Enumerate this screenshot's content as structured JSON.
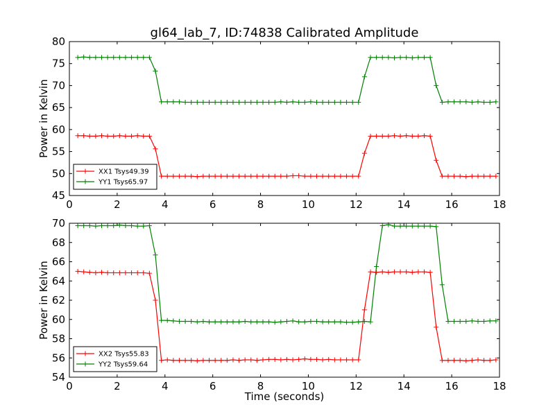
{
  "figure": {
    "title": "gl64_lab_7, ID:74838 Calibrated Amplitude",
    "xlabel": "Time (seconds)"
  },
  "chart_data": [
    {
      "type": "line",
      "title": "gl64_lab_7, ID:74838 Calibrated Amplitude",
      "xlabel": "",
      "ylabel": "Power in Kelvin",
      "xlim": [
        0,
        18
      ],
      "ylim": [
        45,
        80
      ],
      "xticks": [
        0,
        2,
        4,
        6,
        8,
        10,
        12,
        14,
        16,
        18
      ],
      "yticks": [
        45,
        50,
        55,
        60,
        65,
        70,
        75,
        80
      ],
      "grid": false,
      "legend": "lower-left",
      "x": [
        0.35,
        0.6,
        0.85,
        1.1,
        1.35,
        1.6,
        1.85,
        2.1,
        2.35,
        2.6,
        2.85,
        3.1,
        3.35,
        3.6,
        3.85,
        4.1,
        4.35,
        4.6,
        4.85,
        5.1,
        5.35,
        5.6,
        5.85,
        6.1,
        6.35,
        6.6,
        6.85,
        7.1,
        7.35,
        7.6,
        7.85,
        8.1,
        8.35,
        8.6,
        8.85,
        9.1,
        9.35,
        9.6,
        9.85,
        10.1,
        10.35,
        10.6,
        10.85,
        11.1,
        11.35,
        11.6,
        11.85,
        12.1,
        12.35,
        12.6,
        12.85,
        13.1,
        13.35,
        13.6,
        13.85,
        14.1,
        14.35,
        14.6,
        14.85,
        15.1,
        15.35,
        15.6,
        15.85,
        16.1,
        16.35,
        16.6,
        16.85,
        17.1,
        17.35,
        17.6,
        17.85
      ],
      "series": [
        {
          "name": "XX1 Tsys49.39",
          "color": "#ff0000",
          "values": [
            58.6,
            58.6,
            58.5,
            58.5,
            58.6,
            58.5,
            58.5,
            58.6,
            58.5,
            58.5,
            58.6,
            58.5,
            58.5,
            55.6,
            49.4,
            49.4,
            49.4,
            49.4,
            49.4,
            49.4,
            49.3,
            49.4,
            49.4,
            49.4,
            49.4,
            49.4,
            49.4,
            49.4,
            49.4,
            49.4,
            49.4,
            49.4,
            49.4,
            49.4,
            49.4,
            49.4,
            49.5,
            49.5,
            49.4,
            49.4,
            49.4,
            49.4,
            49.4,
            49.4,
            49.4,
            49.4,
            49.4,
            49.4,
            54.6,
            58.5,
            58.5,
            58.5,
            58.5,
            58.6,
            58.5,
            58.6,
            58.5,
            58.5,
            58.6,
            58.5,
            53.0,
            49.4,
            49.4,
            49.4,
            49.4,
            49.3,
            49.4,
            49.4,
            49.4,
            49.4,
            49.4
          ]
        },
        {
          "name": "YY1 Tsys65.97",
          "color": "#008000",
          "values": [
            76.4,
            76.5,
            76.4,
            76.4,
            76.4,
            76.4,
            76.4,
            76.4,
            76.4,
            76.4,
            76.4,
            76.4,
            76.4,
            73.3,
            66.3,
            66.3,
            66.3,
            66.3,
            66.2,
            66.2,
            66.2,
            66.2,
            66.2,
            66.2,
            66.2,
            66.2,
            66.2,
            66.2,
            66.2,
            66.2,
            66.2,
            66.2,
            66.2,
            66.2,
            66.3,
            66.2,
            66.3,
            66.2,
            66.2,
            66.3,
            66.2,
            66.2,
            66.2,
            66.2,
            66.2,
            66.2,
            66.2,
            66.2,
            72.0,
            76.4,
            76.4,
            76.4,
            76.4,
            76.3,
            76.4,
            76.4,
            76.3,
            76.4,
            76.4,
            76.4,
            70.0,
            66.2,
            66.3,
            66.3,
            66.3,
            66.3,
            66.2,
            66.3,
            66.2,
            66.2,
            66.3
          ]
        }
      ]
    },
    {
      "type": "line",
      "title": "",
      "xlabel": "Time (seconds)",
      "ylabel": "Power in Kelvin",
      "xlim": [
        0,
        18
      ],
      "ylim": [
        54,
        70
      ],
      "xticks": [
        0,
        2,
        4,
        6,
        8,
        10,
        12,
        14,
        16,
        18
      ],
      "yticks": [
        54,
        56,
        58,
        60,
        62,
        64,
        66,
        68,
        70
      ],
      "grid": false,
      "legend": "lower-left",
      "x": [
        0.35,
        0.6,
        0.85,
        1.1,
        1.35,
        1.6,
        1.85,
        2.1,
        2.35,
        2.6,
        2.85,
        3.1,
        3.35,
        3.6,
        3.85,
        4.1,
        4.35,
        4.6,
        4.85,
        5.1,
        5.35,
        5.6,
        5.85,
        6.1,
        6.35,
        6.6,
        6.85,
        7.1,
        7.35,
        7.6,
        7.85,
        8.1,
        8.35,
        8.6,
        8.85,
        9.1,
        9.35,
        9.6,
        9.85,
        10.1,
        10.35,
        10.6,
        10.85,
        11.1,
        11.35,
        11.6,
        11.85,
        12.1,
        12.35,
        12.6,
        12.85,
        13.1,
        13.35,
        13.6,
        13.85,
        14.1,
        14.35,
        14.6,
        14.85,
        15.1,
        15.35,
        15.6,
        15.85,
        16.1,
        16.35,
        16.6,
        16.85,
        17.1,
        17.35,
        17.6,
        17.85
      ],
      "series": [
        {
          "name": "XX2 Tsys55.83",
          "color": "#ff0000",
          "values": [
            65.0,
            64.95,
            64.9,
            64.85,
            64.9,
            64.85,
            64.85,
            64.85,
            64.85,
            64.85,
            64.85,
            64.85,
            64.8,
            62.0,
            55.75,
            55.8,
            55.75,
            55.75,
            55.75,
            55.75,
            55.7,
            55.75,
            55.75,
            55.75,
            55.75,
            55.75,
            55.8,
            55.75,
            55.8,
            55.8,
            55.75,
            55.8,
            55.85,
            55.85,
            55.8,
            55.85,
            55.8,
            55.85,
            55.9,
            55.85,
            55.85,
            55.8,
            55.85,
            55.8,
            55.8,
            55.8,
            55.8,
            55.8,
            61.0,
            64.95,
            64.9,
            64.95,
            64.9,
            64.95,
            64.95,
            64.95,
            64.9,
            64.95,
            64.95,
            64.9,
            59.2,
            55.75,
            55.75,
            55.75,
            55.75,
            55.7,
            55.75,
            55.8,
            55.75,
            55.75,
            55.8
          ]
        },
        {
          "name": "YY2 Tsys59.64",
          "color": "#008000",
          "values": [
            69.75,
            69.75,
            69.75,
            69.7,
            69.75,
            69.75,
            69.75,
            69.8,
            69.75,
            69.75,
            69.7,
            69.7,
            69.75,
            66.7,
            59.9,
            59.9,
            59.85,
            59.8,
            59.8,
            59.8,
            59.75,
            59.8,
            59.75,
            59.75,
            59.75,
            59.75,
            59.75,
            59.75,
            59.8,
            59.75,
            59.75,
            59.75,
            59.75,
            59.7,
            59.75,
            59.8,
            59.85,
            59.75,
            59.75,
            59.8,
            59.8,
            59.75,
            59.75,
            59.75,
            59.75,
            59.7,
            59.7,
            59.75,
            59.8,
            59.75,
            65.5,
            69.75,
            69.85,
            69.7,
            69.7,
            69.7,
            69.7,
            69.7,
            69.7,
            69.7,
            69.65,
            63.6,
            59.8,
            59.8,
            59.8,
            59.8,
            59.85,
            59.8,
            59.8,
            59.85,
            59.85
          ]
        }
      ]
    }
  ]
}
